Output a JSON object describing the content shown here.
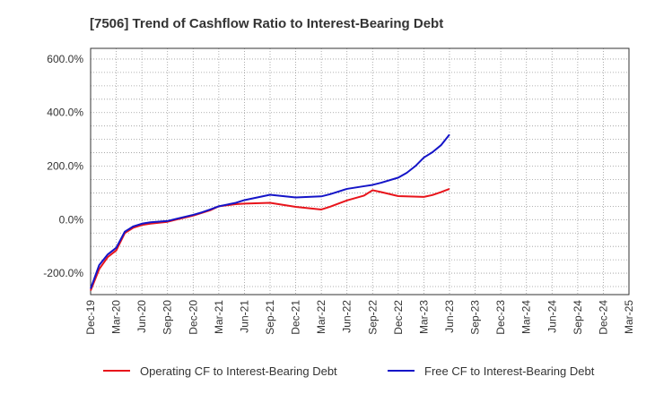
{
  "chart_data": {
    "type": "line",
    "title": "[7506]  Trend of Cashflow Ratio to Interest-Bearing Debt",
    "xlabel": "",
    "ylabel": "",
    "ylim": [
      -280,
      640
    ],
    "yticks": [
      -200,
      0,
      200,
      400,
      600
    ],
    "ytick_labels": [
      "-200.0%",
      "0.0%",
      "200.0%",
      "400.0%",
      "600.0%"
    ],
    "xlim": [
      "2019-12",
      "2025-03"
    ],
    "xtick_labels": [
      "Dec-19",
      "Mar-20",
      "Jun-20",
      "Sep-20",
      "Dec-20",
      "Mar-21",
      "Jun-21",
      "Sep-21",
      "Dec-21",
      "Mar-22",
      "Jun-22",
      "Sep-22",
      "Dec-22",
      "Mar-23",
      "Jun-23",
      "Sep-23",
      "Dec-23",
      "Mar-24",
      "Jun-24",
      "Sep-24",
      "Dec-24",
      "Mar-25"
    ],
    "grid": true,
    "legend_position": "bottom",
    "series": [
      {
        "name": "Operating CF to Interest-Bearing Debt",
        "color": "#e8141b",
        "points": [
          [
            "2019-12",
            -265
          ],
          [
            "2020-01",
            -185
          ],
          [
            "2020-02",
            -140
          ],
          [
            "2020-03",
            -115
          ],
          [
            "2020-04",
            -50
          ],
          [
            "2020-05",
            -30
          ],
          [
            "2020-06",
            -20
          ],
          [
            "2020-07",
            -15
          ],
          [
            "2020-09",
            -8
          ],
          [
            "2020-10",
            0
          ],
          [
            "2020-12",
            15
          ],
          [
            "2021-01",
            25
          ],
          [
            "2021-02",
            35
          ],
          [
            "2021-03",
            50
          ],
          [
            "2021-05",
            58
          ],
          [
            "2021-06",
            60
          ],
          [
            "2021-09",
            63
          ],
          [
            "2021-12",
            48
          ],
          [
            "2022-03",
            38
          ],
          [
            "2022-04",
            48
          ],
          [
            "2022-06",
            72
          ],
          [
            "2022-08",
            90
          ],
          [
            "2022-09",
            110
          ],
          [
            "2022-10",
            103
          ],
          [
            "2022-12",
            88
          ],
          [
            "2023-03",
            85
          ],
          [
            "2023-04",
            92
          ],
          [
            "2023-05",
            103
          ],
          [
            "2023-06",
            115
          ]
        ]
      },
      {
        "name": "Free CF to Interest-Bearing Debt",
        "color": "#1414c8",
        "points": [
          [
            "2019-12",
            -258
          ],
          [
            "2020-01",
            -170
          ],
          [
            "2020-02",
            -130
          ],
          [
            "2020-03",
            -105
          ],
          [
            "2020-04",
            -45
          ],
          [
            "2020-05",
            -25
          ],
          [
            "2020-06",
            -15
          ],
          [
            "2020-07",
            -10
          ],
          [
            "2020-09",
            -5
          ],
          [
            "2020-10",
            3
          ],
          [
            "2020-12",
            18
          ],
          [
            "2021-01",
            27
          ],
          [
            "2021-02",
            38
          ],
          [
            "2021-03",
            50
          ],
          [
            "2021-05",
            63
          ],
          [
            "2021-06",
            73
          ],
          [
            "2021-09",
            93
          ],
          [
            "2021-12",
            83
          ],
          [
            "2022-03",
            87
          ],
          [
            "2022-04",
            95
          ],
          [
            "2022-06",
            115
          ],
          [
            "2022-08",
            125
          ],
          [
            "2022-09",
            130
          ],
          [
            "2022-10",
            138
          ],
          [
            "2022-12",
            157
          ],
          [
            "2023-01",
            175
          ],
          [
            "2023-02",
            200
          ],
          [
            "2023-03",
            232
          ],
          [
            "2023-04",
            252
          ],
          [
            "2023-05",
            278
          ],
          [
            "2023-06",
            318
          ]
        ]
      }
    ]
  }
}
